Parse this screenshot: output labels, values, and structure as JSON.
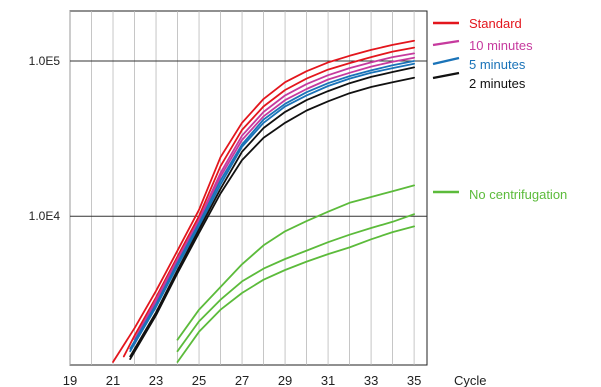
{
  "chart_data": {
    "type": "line",
    "title": "",
    "xlabel": "Cycle",
    "ylabel": "",
    "xlim": [
      19,
      35.6
    ],
    "y_scale": "log",
    "ylim": [
      1100,
      210000
    ],
    "grid": true,
    "legend_position": "right",
    "x_ticks": [
      "19",
      "21",
      "23",
      "25",
      "27",
      "29",
      "31",
      "33",
      "35"
    ],
    "y_ticks": [
      {
        "label": "1.0E5",
        "value": 100000
      },
      {
        "label": "1.0E4",
        "value": 10000
      }
    ],
    "legend": [
      {
        "name": "Standard",
        "color": "#e3161d"
      },
      {
        "name": "10 minutes",
        "color": "#c63a9e"
      },
      {
        "name": "5 minutes",
        "color": "#1a73b8"
      },
      {
        "name": "2 minutes",
        "color": "#111111"
      },
      {
        "name": "No centrifugation",
        "color": "#5cbb3b"
      }
    ],
    "series": [
      {
        "name": "Standard",
        "color": "#e3161d",
        "x": [
          21,
          22,
          23,
          24,
          25,
          26,
          27,
          28,
          29,
          30,
          31,
          32,
          33,
          34,
          35
        ],
        "y": [
          1150,
          1900,
          3300,
          6000,
          11000,
          24000,
          40000,
          57000,
          73000,
          86000,
          98000,
          108000,
          118000,
          127000,
          135000
        ]
      },
      {
        "name": "Standard",
        "color": "#e3161d",
        "x": [
          21.5,
          22,
          23,
          24,
          25,
          26,
          27,
          28,
          29,
          30,
          31,
          32,
          33,
          34,
          35
        ],
        "y": [
          1250,
          1700,
          3000,
          5500,
          10000,
          21000,
          36000,
          51000,
          65000,
          77000,
          88000,
          97000,
          106000,
          115000,
          122000
        ]
      },
      {
        "name": "10 minutes",
        "color": "#c63a9e",
        "x": [
          22,
          23,
          24,
          25,
          26,
          27,
          28,
          29,
          30,
          31,
          32,
          33,
          34,
          35
        ],
        "y": [
          1600,
          2900,
          5300,
          9500,
          19000,
          33000,
          47000,
          60000,
          71000,
          81000,
          90000,
          98000,
          106000,
          112000
        ]
      },
      {
        "name": "10 minutes",
        "color": "#c63a9e",
        "x": [
          22,
          23,
          24,
          25,
          26,
          27,
          28,
          29,
          30,
          31,
          32,
          33,
          34,
          35
        ],
        "y": [
          1500,
          2800,
          5100,
          9200,
          18000,
          31000,
          44000,
          56000,
          66000,
          76000,
          84000,
          92000,
          99000,
          105000
        ]
      },
      {
        "name": "5 minutes",
        "color": "#1a73b8",
        "x": [
          21.8,
          23,
          24,
          25,
          26,
          27,
          28,
          29,
          30,
          31,
          32,
          33,
          34,
          35
        ],
        "y": [
          1400,
          2700,
          5000,
          9000,
          17000,
          29000,
          42000,
          53000,
          63000,
          72000,
          80000,
          87000,
          94000,
          100000
        ]
      },
      {
        "name": "5 minutes",
        "color": "#1a73b8",
        "x": [
          21.8,
          23,
          24,
          25,
          26,
          27,
          28,
          29,
          30,
          31,
          32,
          33,
          34,
          35
        ],
        "y": [
          1350,
          2600,
          4800,
          8600,
          16000,
          28000,
          40000,
          51000,
          60000,
          69000,
          77000,
          84000,
          90000,
          96000
        ]
      },
      {
        "name": "2 minutes",
        "color": "#111111",
        "x": [
          21.8,
          23,
          24,
          25,
          26,
          27,
          28,
          29,
          30,
          31,
          32,
          33,
          34,
          35
        ],
        "y": [
          1250,
          2400,
          4500,
          8200,
          15000,
          26000,
          37000,
          47000,
          56000,
          64000,
          72000,
          79000,
          85000,
          91000
        ]
      },
      {
        "name": "2 minutes",
        "color": "#111111",
        "x": [
          21.8,
          23,
          24,
          25,
          26,
          27,
          28,
          29,
          30,
          31,
          32,
          33,
          34,
          35
        ],
        "y": [
          1200,
          2300,
          4300,
          7800,
          14000,
          23000,
          32000,
          40000,
          48000,
          55000,
          62000,
          68000,
          73000,
          78000
        ]
      },
      {
        "name": "No centrifugation",
        "color": "#5cbb3b",
        "x": [
          24,
          25,
          26,
          27,
          28,
          29,
          30,
          31,
          32,
          33,
          34,
          35
        ],
        "y": [
          1600,
          2500,
          3500,
          4900,
          6500,
          8000,
          9300,
          10700,
          12200,
          13300,
          14500,
          15800
        ]
      },
      {
        "name": "No centrifugation",
        "color": "#5cbb3b",
        "x": [
          24,
          25,
          26,
          27,
          28,
          29,
          30,
          31,
          32,
          33,
          34,
          35
        ],
        "y": [
          1350,
          2100,
          2900,
          3800,
          4600,
          5300,
          6000,
          6800,
          7600,
          8400,
          9200,
          10300
        ]
      },
      {
        "name": "No centrifugation",
        "color": "#5cbb3b",
        "x": [
          24,
          25,
          26,
          27,
          28,
          29,
          30,
          31,
          32,
          33,
          34,
          35
        ],
        "y": [
          1150,
          1800,
          2500,
          3200,
          3900,
          4500,
          5100,
          5700,
          6300,
          7100,
          7900,
          8600
        ]
      }
    ]
  }
}
